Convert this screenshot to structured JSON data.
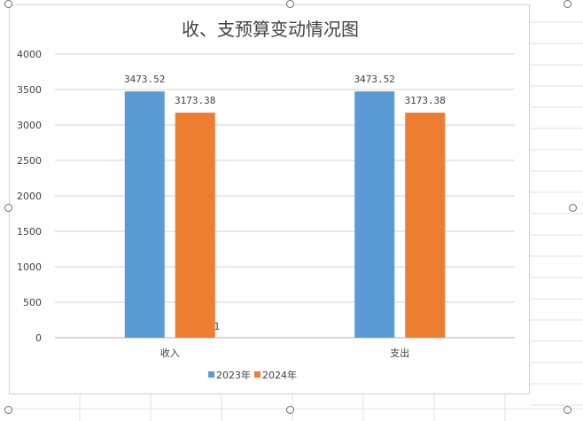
{
  "chart_data": {
    "type": "bar",
    "title": "收、支预算变动情况图",
    "categories": [
      "收入",
      "支出"
    ],
    "series": [
      {
        "name": "2023年",
        "color": "#5B9BD5",
        "values": [
          3473.52,
          3473.52
        ],
        "labels": [
          "3473.52",
          "3473.52"
        ]
      },
      {
        "name": "2024年",
        "color": "#ED7D31",
        "values": [
          3173.38,
          3173.38
        ],
        "labels": [
          "3173.38",
          "3173.38"
        ]
      }
    ],
    "y_ticks": [
      "0",
      "500",
      "1000",
      "1500",
      "2000",
      "2500",
      "3000",
      "3500",
      "4000"
    ],
    "ylim": [
      0,
      4000
    ],
    "annotation": "1",
    "grid": true,
    "legend": "bottom"
  }
}
